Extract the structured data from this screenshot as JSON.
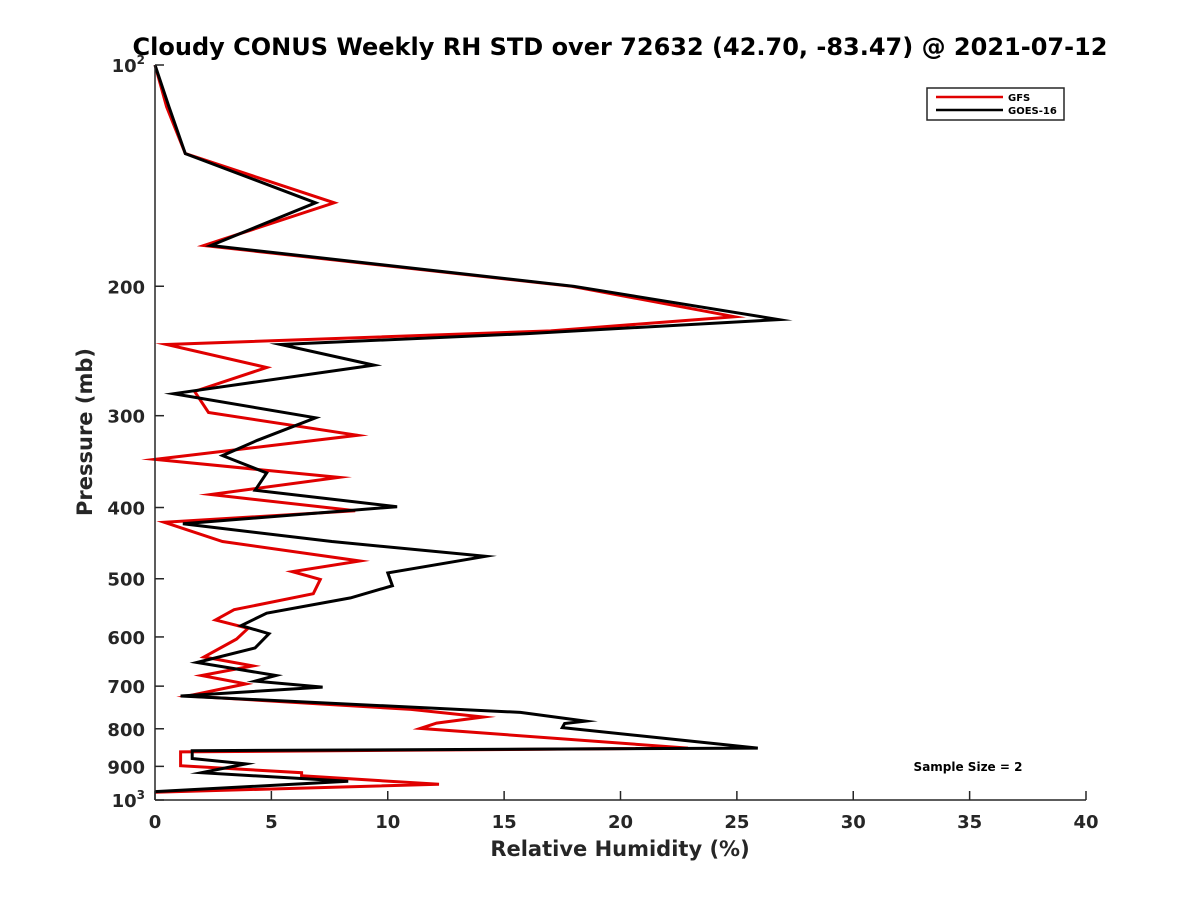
{
  "chart_data": {
    "type": "line",
    "title": "Cloudy CONUS Weekly RH STD over 72632 (42.70, -83.47) @ 2021-07-12",
    "xlabel": "Relative Humidity (%)",
    "ylabel": "Pressure (mb)",
    "xlim": [
      0,
      40
    ],
    "ylim": [
      100,
      1000
    ],
    "yscale": "log",
    "y_reversed": true,
    "x_ticks": [
      "0",
      "5",
      "10",
      "15",
      "20",
      "25",
      "30",
      "35",
      "40"
    ],
    "y_ticks": [
      {
        "value": 100,
        "base": "10",
        "exp": "2"
      },
      {
        "value": 200,
        "label": "200"
      },
      {
        "value": 300,
        "label": "300"
      },
      {
        "value": 400,
        "label": "400"
      },
      {
        "value": 500,
        "label": "500"
      },
      {
        "value": 600,
        "label": "600"
      },
      {
        "value": 700,
        "label": "700"
      },
      {
        "value": 800,
        "label": "800"
      },
      {
        "value": 900,
        "label": "900"
      },
      {
        "value": 1000,
        "base": "10",
        "exp": "3"
      }
    ],
    "grid": false,
    "legend_position": "top-right",
    "series": [
      {
        "name": "GFS",
        "color": "#e00000",
        "points": [
          [
            0.0,
            100
          ],
          [
            0.5,
            114
          ],
          [
            1.3,
            132
          ],
          [
            7.7,
            154
          ],
          [
            2.1,
            176
          ],
          [
            17.9,
            200
          ],
          [
            24.9,
            220
          ],
          [
            17.0,
            230
          ],
          [
            0.5,
            240
          ],
          [
            4.8,
            258
          ],
          [
            1.7,
            278
          ],
          [
            2.3,
            297
          ],
          [
            8.7,
            319
          ],
          [
            0.0,
            344
          ],
          [
            7.9,
            364
          ],
          [
            2.4,
            384
          ],
          [
            8.6,
            404
          ],
          [
            0.4,
            419
          ],
          [
            2.9,
            445
          ],
          [
            8.8,
            473
          ],
          [
            5.9,
            489
          ],
          [
            7.1,
            501
          ],
          [
            6.8,
            524
          ],
          [
            3.4,
            551
          ],
          [
            2.6,
            569
          ],
          [
            4.0,
            584
          ],
          [
            3.5,
            604
          ],
          [
            2.1,
            639
          ],
          [
            4.2,
            657
          ],
          [
            2.0,
            677
          ],
          [
            3.9,
            695
          ],
          [
            1.4,
            722
          ],
          [
            11.0,
            753
          ],
          [
            14.1,
            771
          ],
          [
            12.1,
            786
          ],
          [
            11.4,
            799
          ],
          [
            22.9,
            850
          ],
          [
            1.1,
            860
          ],
          [
            1.1,
            898
          ],
          [
            6.3,
            918
          ],
          [
            6.3,
            927
          ],
          [
            12.2,
            952
          ],
          [
            0.0,
            976
          ]
        ]
      },
      {
        "name": "GOES-16",
        "color": "#000000",
        "points": [
          [
            0.0,
            100
          ],
          [
            0.6,
            114
          ],
          [
            1.3,
            132
          ],
          [
            6.9,
            154
          ],
          [
            2.4,
            176
          ],
          [
            18.0,
            200
          ],
          [
            26.8,
            222
          ],
          [
            16.0,
            232
          ],
          [
            5.4,
            240
          ],
          [
            9.4,
            256
          ],
          [
            0.8,
            280
          ],
          [
            6.9,
            302
          ],
          [
            4.4,
            324
          ],
          [
            2.9,
            340
          ],
          [
            4.8,
            359
          ],
          [
            4.3,
            379
          ],
          [
            10.4,
            399
          ],
          [
            1.2,
            421
          ],
          [
            7.6,
            445
          ],
          [
            14.2,
            466
          ],
          [
            10.0,
            491
          ],
          [
            10.2,
            511
          ],
          [
            8.4,
            531
          ],
          [
            4.8,
            557
          ],
          [
            3.7,
            579
          ],
          [
            4.9,
            594
          ],
          [
            4.3,
            621
          ],
          [
            1.8,
            650
          ],
          [
            5.2,
            677
          ],
          [
            4.3,
            689
          ],
          [
            7.2,
            702
          ],
          [
            1.1,
            722
          ],
          [
            15.7,
            760
          ],
          [
            18.5,
            781
          ],
          [
            17.6,
            787
          ],
          [
            17.5,
            797
          ],
          [
            25.9,
            850
          ],
          [
            1.6,
            857
          ],
          [
            1.6,
            878
          ],
          [
            3.9,
            893
          ],
          [
            2.0,
            918
          ],
          [
            8.3,
            943
          ],
          [
            0.0,
            974
          ]
        ]
      }
    ],
    "annotation": "Sample Size = 2"
  }
}
